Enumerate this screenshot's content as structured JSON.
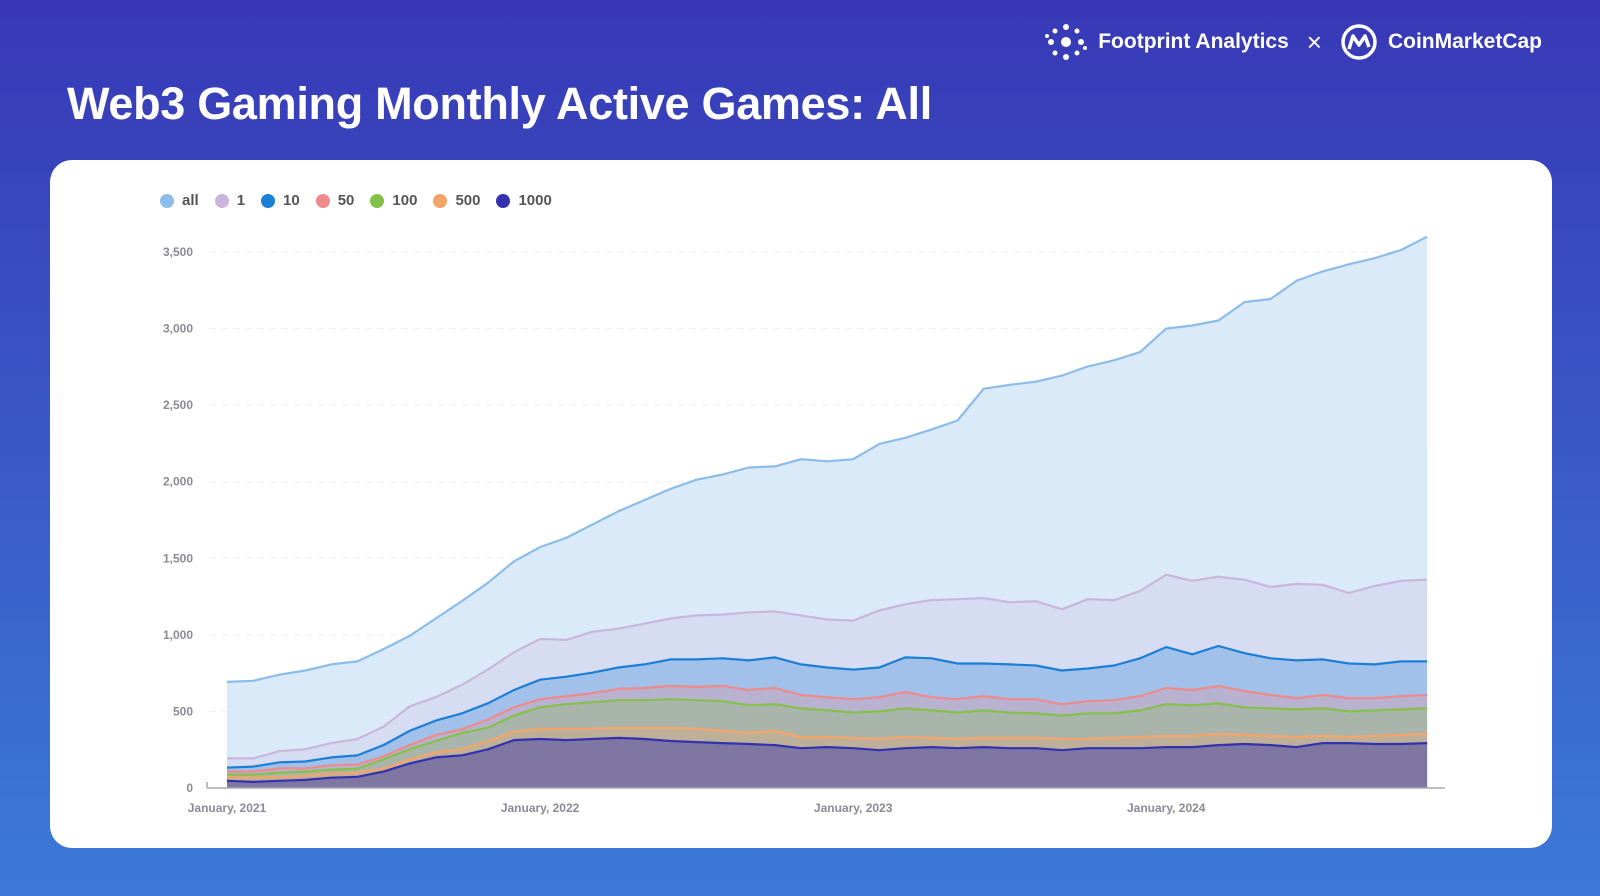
{
  "header": {
    "title": "Web3 Gaming Monthly Active Games: All",
    "brand_left": "Footprint Analytics",
    "brand_separator": "×",
    "brand_right": "CoinMarketCap"
  },
  "chart_data": {
    "type": "area",
    "title": "",
    "xlabel": "",
    "ylabel": "",
    "x_start": "2021-01",
    "x_interval": "month",
    "x_tick_labels": [
      "January, 2021",
      "January, 2022",
      "January, 2023",
      "January, 2024"
    ],
    "y_tick_labels": [
      "0",
      "500",
      "1,000",
      "1,500",
      "2,000",
      "2,500",
      "3,000",
      "3,500"
    ],
    "ylim": [
      0,
      3600
    ],
    "grid": "horizontal dashed",
    "legend_position": "top-left",
    "series": [
      {
        "name": "all",
        "color": "#8bbcea",
        "values": [
          693,
          700,
          740,
          767,
          807,
          827,
          907,
          993,
          1107,
          1220,
          1340,
          1480,
          1573,
          1633,
          1720,
          1807,
          1880,
          1953,
          2013,
          2047,
          2093,
          2100,
          2147,
          2133,
          2147,
          2247,
          2287,
          2340,
          2400,
          2607,
          2633,
          2653,
          2693,
          2753,
          2793,
          2847,
          3000,
          3020,
          3053,
          3173,
          3193,
          3313,
          3373,
          3420,
          3460,
          3513,
          3600
        ]
      },
      {
        "name": "1",
        "color": "#c9b6dd",
        "values": [
          193,
          193,
          240,
          253,
          293,
          320,
          400,
          533,
          593,
          673,
          773,
          887,
          973,
          967,
          1020,
          1040,
          1073,
          1107,
          1127,
          1133,
          1147,
          1153,
          1127,
          1100,
          1093,
          1160,
          1200,
          1227,
          1233,
          1240,
          1213,
          1220,
          1167,
          1233,
          1227,
          1287,
          1393,
          1353,
          1380,
          1360,
          1313,
          1333,
          1327,
          1273,
          1320,
          1353,
          1360
        ]
      },
      {
        "name": "10",
        "color": "#1b7fd6",
        "values": [
          133,
          140,
          167,
          173,
          200,
          213,
          280,
          373,
          440,
          487,
          553,
          640,
          707,
          727,
          753,
          787,
          807,
          840,
          840,
          847,
          833,
          853,
          807,
          787,
          773,
          787,
          853,
          847,
          813,
          813,
          807,
          800,
          767,
          780,
          800,
          847,
          920,
          873,
          927,
          880,
          847,
          833,
          840,
          813,
          807,
          827,
          827
        ]
      },
      {
        "name": "50",
        "color": "#ef8a8a",
        "values": [
          108,
          108,
          128,
          128,
          148,
          153,
          207,
          280,
          347,
          383,
          447,
          527,
          580,
          600,
          620,
          647,
          653,
          667,
          660,
          667,
          640,
          653,
          607,
          593,
          580,
          593,
          627,
          593,
          580,
          600,
          580,
          580,
          547,
          567,
          573,
          600,
          653,
          640,
          667,
          633,
          607,
          587,
          607,
          587,
          587,
          600,
          607
        ]
      },
      {
        "name": "100",
        "color": "#84c14a",
        "values": [
          87,
          87,
          100,
          107,
          120,
          127,
          187,
          253,
          307,
          360,
          393,
          473,
          527,
          547,
          560,
          573,
          573,
          580,
          573,
          567,
          540,
          547,
          520,
          507,
          493,
          500,
          520,
          507,
          493,
          507,
          493,
          487,
          473,
          487,
          487,
          507,
          547,
          540,
          553,
          527,
          520,
          513,
          520,
          500,
          507,
          513,
          520
        ]
      },
      {
        "name": "500",
        "color": "#f4a46a",
        "values": [
          70,
          67,
          73,
          80,
          93,
          100,
          127,
          187,
          233,
          253,
          307,
          367,
          387,
          387,
          387,
          393,
          393,
          393,
          387,
          373,
          360,
          373,
          333,
          333,
          327,
          320,
          333,
          327,
          320,
          327,
          327,
          327,
          320,
          320,
          327,
          333,
          340,
          340,
          353,
          347,
          340,
          333,
          340,
          333,
          340,
          347,
          353
        ]
      },
      {
        "name": "1000",
        "color": "#3232b0",
        "values": [
          47,
          40,
          47,
          53,
          67,
          73,
          107,
          160,
          200,
          213,
          253,
          313,
          320,
          313,
          320,
          327,
          320,
          307,
          300,
          293,
          287,
          280,
          260,
          267,
          260,
          247,
          260,
          267,
          260,
          267,
          260,
          260,
          247,
          260,
          260,
          260,
          267,
          267,
          280,
          287,
          280,
          267,
          293,
          293,
          287,
          287,
          293
        ]
      }
    ]
  }
}
